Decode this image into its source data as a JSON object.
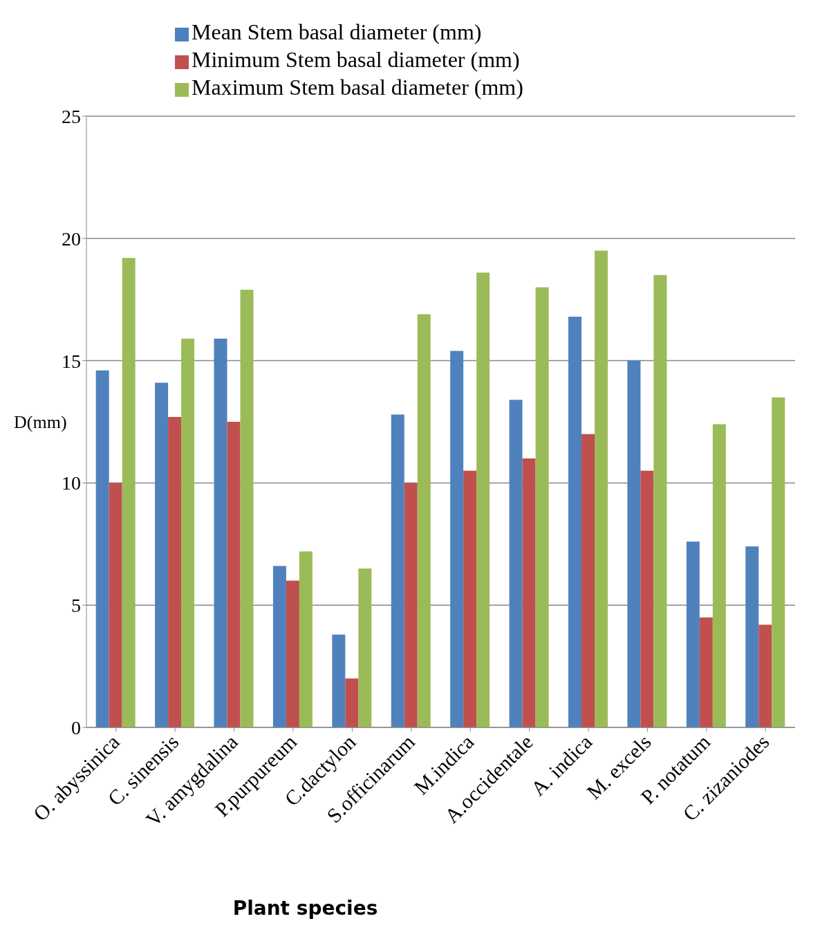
{
  "chart_data": {
    "type": "bar",
    "xlabel": "Plant species",
    "ylabel": "D(mm)",
    "categories": [
      "O. abyssinica",
      "C. sinensis",
      "V. amygdalina",
      "P.purpureum",
      "C.dactylon",
      "S.officinarum",
      "M.indica",
      "A.occidentale",
      "A. indica",
      "M. excels",
      "P. notatum",
      "C. zizaniodes"
    ],
    "series": [
      {
        "name": "Mean Stem basal diameter (mm)",
        "color": "#4f81bd",
        "values": [
          14.6,
          14.1,
          15.9,
          6.6,
          3.8,
          12.8,
          15.4,
          13.4,
          16.8,
          15,
          7.6,
          7.4
        ]
      },
      {
        "name": "Minimum Stem basal diameter (mm)",
        "color": "#c0504d",
        "values": [
          10,
          12.7,
          12.5,
          6,
          2,
          10,
          10.5,
          11,
          12,
          10.5,
          4.5,
          4.2
        ]
      },
      {
        "name": "Maximum Stem basal diameter (mm)",
        "color": "#9bbb59",
        "values": [
          19.2,
          15.9,
          17.9,
          7.2,
          6.5,
          16.9,
          18.6,
          18,
          19.5,
          18.5,
          12.4,
          13.5
        ]
      }
    ],
    "ylim": [
      0,
      25
    ],
    "yticks": [
      0,
      5,
      10,
      15,
      20,
      25
    ],
    "grid": "y",
    "legend": "top"
  }
}
